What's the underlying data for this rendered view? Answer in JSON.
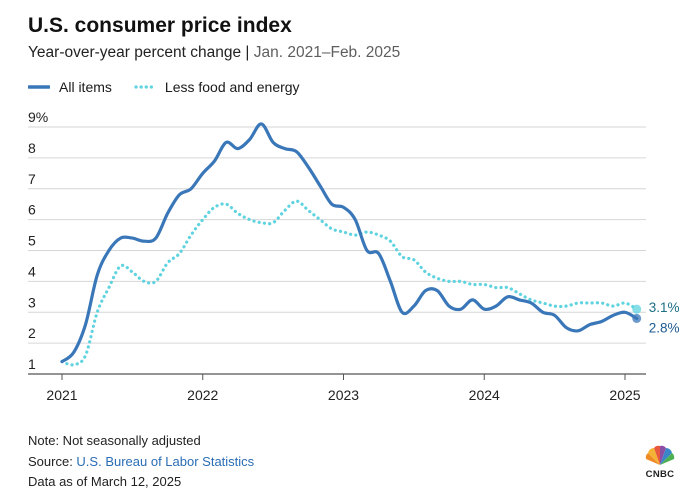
{
  "header": {
    "title": "U.S. consumer price index",
    "subtitle_main": "Year-over-year percent change",
    "subtitle_sep": " | ",
    "subtitle_period": "Jan. 2021–Feb. 2025"
  },
  "footer": {
    "note": "Note: Not seasonally adjusted",
    "source_prefix": "Source: ",
    "source_name": "U.S. Bureau of Labor Statistics",
    "as_of": "Data as of March 12, 2025"
  },
  "logo": {
    "text": "CNBC",
    "icon": "peacock-icon"
  },
  "colors": {
    "all_items": "#3a77b9",
    "core": "#5fd3df",
    "grid": "#d6d6d6",
    "axis": "#555555"
  },
  "chart_data": {
    "type": "line",
    "title": "U.S. consumer price index",
    "x_start": "2021-01",
    "x_end": "2025-02",
    "x_ticks": [
      "2021",
      "2022",
      "2023",
      "2024",
      "2025"
    ],
    "y_ticks": [
      "9%",
      "8",
      "7",
      "6",
      "5",
      "4",
      "3",
      "2",
      "1"
    ],
    "ylim": [
      1,
      9
    ],
    "grid": true,
    "legend_position": "top-left",
    "series": [
      {
        "name": "All items",
        "style": "solid",
        "end_label": "2.8%",
        "values": [
          1.4,
          1.7,
          2.6,
          4.2,
          5.0,
          5.4,
          5.4,
          5.3,
          5.4,
          6.2,
          6.8,
          7.0,
          7.5,
          7.9,
          8.5,
          8.3,
          8.6,
          9.1,
          8.5,
          8.3,
          8.2,
          7.7,
          7.1,
          6.5,
          6.4,
          6.0,
          5.0,
          4.9,
          4.0,
          3.0,
          3.2,
          3.7,
          3.7,
          3.2,
          3.1,
          3.4,
          3.1,
          3.2,
          3.5,
          3.4,
          3.3,
          3.0,
          2.9,
          2.5,
          2.4,
          2.6,
          2.7,
          2.9,
          3.0,
          2.8
        ]
      },
      {
        "name": "Less food and energy",
        "style": "dotted",
        "end_label": "3.1%",
        "values": [
          1.4,
          1.3,
          1.6,
          3.0,
          3.8,
          4.5,
          4.3,
          4.0,
          4.0,
          4.6,
          4.9,
          5.5,
          6.0,
          6.4,
          6.5,
          6.2,
          6.0,
          5.9,
          5.9,
          6.3,
          6.6,
          6.3,
          6.0,
          5.7,
          5.6,
          5.5,
          5.6,
          5.5,
          5.3,
          4.8,
          4.7,
          4.3,
          4.1,
          4.0,
          4.0,
          3.9,
          3.9,
          3.8,
          3.8,
          3.6,
          3.4,
          3.3,
          3.2,
          3.2,
          3.3,
          3.3,
          3.3,
          3.2,
          3.3,
          3.1
        ]
      }
    ]
  }
}
